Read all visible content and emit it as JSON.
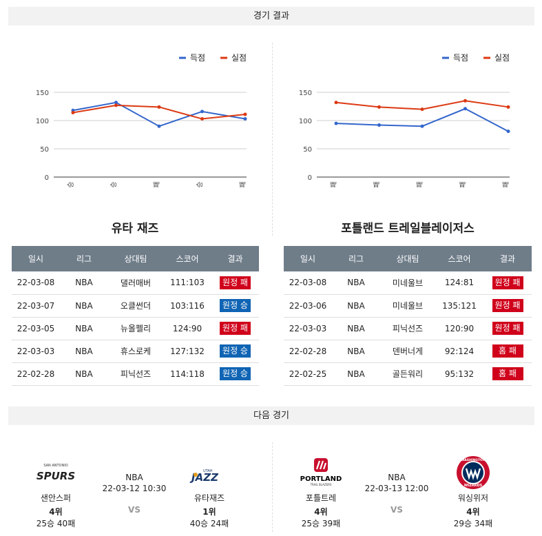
{
  "sections": {
    "results_title": "경기 결과",
    "next_title": "다음 경기"
  },
  "legend": {
    "scored": "득점",
    "conceded": "실점",
    "scored_color": "#3366cc",
    "conceded_color": "#dc3912"
  },
  "chart_data": [
    {
      "type": "line",
      "categories": [
        "승",
        "승",
        "패",
        "승",
        "패"
      ],
      "series": [
        {
          "name": "득점",
          "values": [
            118,
            132,
            90,
            116,
            103
          ]
        },
        {
          "name": "실점",
          "values": [
            114,
            127,
            124,
            103,
            111
          ]
        }
      ],
      "yticks": [
        0,
        50,
        100,
        150
      ],
      "ylim": [
        0,
        150
      ],
      "legend": "top-right",
      "grid": true
    },
    {
      "type": "line",
      "categories": [
        "패",
        "패",
        "패",
        "패",
        "패"
      ],
      "series": [
        {
          "name": "득점",
          "values": [
            95,
            92,
            90,
            121,
            81
          ]
        },
        {
          "name": "실점",
          "values": [
            132,
            124,
            120,
            135,
            124
          ]
        }
      ],
      "yticks": [
        0,
        50,
        100,
        150
      ],
      "ylim": [
        0,
        150
      ],
      "legend": "top-right",
      "grid": true
    }
  ],
  "table_headers": [
    "일시",
    "리그",
    "상대팀",
    "스코어",
    "결과"
  ],
  "teams": [
    {
      "title": "유타 재즈",
      "rows": [
        {
          "date": "22-03-08",
          "league": "NBA",
          "opponent": "댈러매버",
          "score": "111:103",
          "result": "원정 패",
          "color": "red"
        },
        {
          "date": "22-03-07",
          "league": "NBA",
          "opponent": "오클썬더",
          "score": "103:116",
          "result": "원정 승",
          "color": "blue"
        },
        {
          "date": "22-03-05",
          "league": "NBA",
          "opponent": "뉴올펠리",
          "score": "124:90",
          "result": "원정 패",
          "color": "red"
        },
        {
          "date": "22-03-03",
          "league": "NBA",
          "opponent": "휴스로케",
          "score": "127:132",
          "result": "원정 승",
          "color": "blue"
        },
        {
          "date": "22-02-28",
          "league": "NBA",
          "opponent": "피닉선즈",
          "score": "114:118",
          "result": "원정 승",
          "color": "blue"
        }
      ]
    },
    {
      "title": "포틀랜드 트레일블레이저스",
      "rows": [
        {
          "date": "22-03-08",
          "league": "NBA",
          "opponent": "미네울브",
          "score": "124:81",
          "result": "원정 패",
          "color": "red"
        },
        {
          "date": "22-03-06",
          "league": "NBA",
          "opponent": "미네울브",
          "score": "135:121",
          "result": "원정 패",
          "color": "red"
        },
        {
          "date": "22-03-03",
          "league": "NBA",
          "opponent": "피닉선즈",
          "score": "120:90",
          "result": "원정 패",
          "color": "red"
        },
        {
          "date": "22-02-28",
          "league": "NBA",
          "opponent": "덴버너게",
          "score": "92:124",
          "result": "홈 패",
          "color": "red"
        },
        {
          "date": "22-02-25",
          "league": "NBA",
          "opponent": "골든워리",
          "score": "95:132",
          "result": "홈 패",
          "color": "red"
        }
      ]
    }
  ],
  "next_games": [
    {
      "league": "NBA",
      "datetime": "22-03-12 10:30",
      "vs": "VS",
      "home": {
        "name": "샌안스퍼",
        "rank": "4위",
        "record": "25승 40패",
        "logo_text": "SPURS",
        "logo_sub": "SAN ANTONIO"
      },
      "away": {
        "name": "유타재즈",
        "rank": "1위",
        "record": "40승 24패",
        "logo_text": "JAZZ",
        "logo_sub": "UTAH"
      }
    },
    {
      "league": "NBA",
      "datetime": "22-03-13 12:00",
      "vs": "VS",
      "home": {
        "name": "포틀트레",
        "rank": "4위",
        "record": "25승 39패",
        "logo_text": "PORTLAND",
        "logo_sub": "TRAIL BLAZERS"
      },
      "away": {
        "name": "워싱위저",
        "rank": "4위",
        "record": "29승 34패",
        "logo_text": "WIZARDS",
        "logo_sub": "WASHINGTON"
      }
    }
  ]
}
